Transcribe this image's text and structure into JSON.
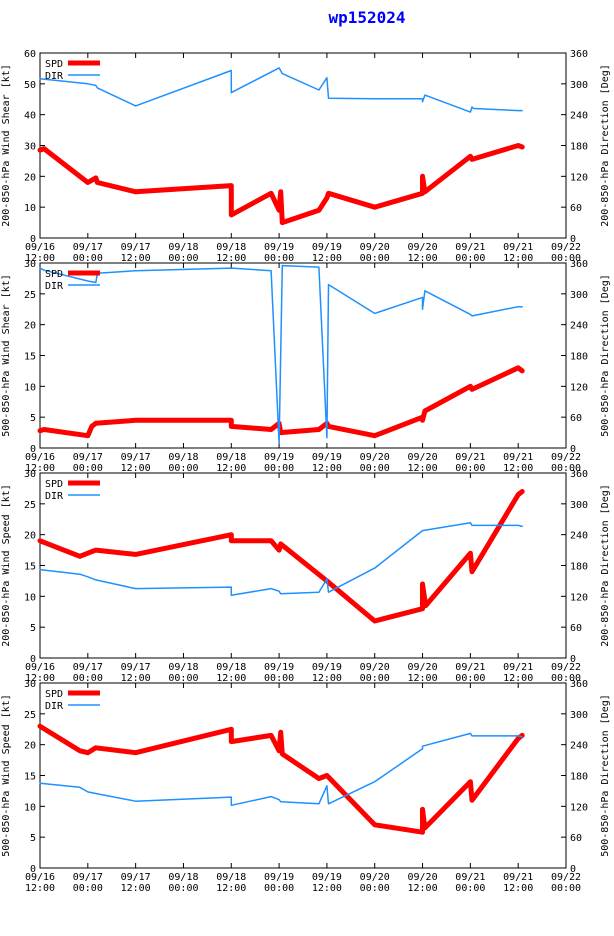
{
  "title": "wp152024",
  "colors": {
    "spd": "#ff0000",
    "dir": "#1e90ff",
    "frame": "#000000"
  },
  "x_ticks": [
    "09/16 12:00",
    "09/17 00:00",
    "09/17 12:00",
    "09/18 00:00",
    "09/18 12:00",
    "09/19 00:00",
    "09/19 12:00",
    "09/20 00:00",
    "09/20 12:00",
    "09/21 00:00",
    "09/21 12:00",
    "09/22 00:00"
  ],
  "chart_data": [
    {
      "type": "line",
      "xlim": [
        0,
        66
      ],
      "ylim": [
        0,
        60
      ],
      "y2lim": [
        0,
        360
      ],
      "yticks": [
        0,
        10,
        20,
        30,
        40,
        50,
        60
      ],
      "y2ticks": [
        0,
        60,
        120,
        180,
        240,
        300,
        360
      ],
      "ylabel": "200-850-hPa Wind Shear [kt]",
      "y2label": "200-850-hPa Direction [Deg]",
      "legend": [
        "SPD",
        "DIR"
      ],
      "series": [
        {
          "name": "SPD",
          "axis": "left",
          "points": [
            [
              0,
              28.5
            ],
            [
              0.5,
              29
            ],
            [
              6,
              18
            ],
            [
              7,
              19.5
            ],
            [
              7.2,
              18
            ],
            [
              12,
              15
            ],
            [
              24,
              17
            ],
            [
              24,
              7.5
            ],
            [
              29,
              14.5
            ],
            [
              30,
              9
            ],
            [
              30.2,
              15
            ],
            [
              30.4,
              5
            ],
            [
              35,
              9
            ],
            [
              36,
              13
            ],
            [
              36.2,
              14.5
            ],
            [
              42,
              10
            ],
            [
              48,
              14.5
            ],
            [
              48,
              20
            ],
            [
              48.3,
              15
            ],
            [
              54,
              26.5
            ],
            [
              54.2,
              25.5
            ],
            [
              60,
              30
            ],
            [
              60.5,
              29.5
            ]
          ]
        },
        {
          "name": "DIR",
          "axis": "right",
          "points": [
            [
              0,
              310
            ],
            [
              6,
              300
            ],
            [
              7,
              297
            ],
            [
              7.2,
              292
            ],
            [
              12,
              257
            ],
            [
              24,
              326
            ],
            [
              24,
              283
            ],
            [
              30,
              331
            ],
            [
              30.4,
              320
            ],
            [
              35,
              288
            ],
            [
              36,
              312
            ],
            [
              36.2,
              272
            ],
            [
              42,
              271
            ],
            [
              48,
              271
            ],
            [
              48,
              265
            ],
            [
              48.3,
              278
            ],
            [
              54,
              245
            ],
            [
              54.2,
              255
            ],
            [
              54.4,
              252
            ],
            [
              60,
              248
            ],
            [
              60.5,
              248
            ]
          ]
        }
      ]
    },
    {
      "type": "line",
      "xlim": [
        0,
        66
      ],
      "ylim": [
        0,
        30
      ],
      "y2lim": [
        0,
        360
      ],
      "yticks": [
        0,
        5,
        10,
        15,
        20,
        25,
        30
      ],
      "y2ticks": [
        0,
        60,
        120,
        180,
        240,
        300,
        360
      ],
      "ylabel": "500-850-hPa Wind Shear [kt]",
      "y2label": "500-850-hPa Direction [Deg]",
      "legend": [
        "SPD",
        "DIR"
      ],
      "series": [
        {
          "name": "SPD",
          "axis": "left",
          "points": [
            [
              0,
              2.8
            ],
            [
              0.5,
              3
            ],
            [
              6,
              2
            ],
            [
              6.5,
              3.5
            ],
            [
              7,
              4
            ],
            [
              12,
              4.5
            ],
            [
              24,
              4.5
            ],
            [
              24,
              3.5
            ],
            [
              29,
              3
            ],
            [
              30,
              4
            ],
            [
              30.2,
              2.5
            ],
            [
              35,
              3
            ],
            [
              36,
              4
            ],
            [
              36.2,
              3.5
            ],
            [
              42,
              2
            ],
            [
              48,
              5
            ],
            [
              48,
              4.5
            ],
            [
              48.3,
              6
            ],
            [
              54,
              10
            ],
            [
              54.2,
              9.5
            ],
            [
              60,
              13
            ],
            [
              60.5,
              12.5
            ]
          ]
        },
        {
          "name": "DIR",
          "axis": "right",
          "points": [
            [
              0,
              350
            ],
            [
              0.5,
              346
            ],
            [
              6,
              325
            ],
            [
              7,
              322
            ],
            [
              7.2,
              340
            ],
            [
              12,
              345
            ],
            [
              24,
              350
            ],
            [
              29,
              345
            ],
            [
              30,
              10
            ],
            [
              30.4,
              355
            ],
            [
              35,
              352
            ],
            [
              36,
              20
            ],
            [
              36.2,
              318
            ],
            [
              42,
              262
            ],
            [
              48,
              293
            ],
            [
              48,
              270
            ],
            [
              48.3,
              306
            ],
            [
              54,
              260
            ],
            [
              54.2,
              257
            ],
            [
              60,
              275
            ],
            [
              60.5,
              275
            ]
          ]
        }
      ]
    },
    {
      "type": "line",
      "xlim": [
        0,
        66
      ],
      "ylim": [
        0,
        30
      ],
      "y2lim": [
        0,
        360
      ],
      "yticks": [
        0,
        5,
        10,
        15,
        20,
        25,
        30
      ],
      "y2ticks": [
        0,
        60,
        120,
        180,
        240,
        300,
        360
      ],
      "ylabel": "200-850-hPa Wind Speed [kt]",
      "y2label": "200-850-hPa Direction [Deg]",
      "legend": [
        "SPD",
        "DIR"
      ],
      "series": [
        {
          "name": "SPD",
          "axis": "left",
          "points": [
            [
              0,
              19
            ],
            [
              5,
              16.5
            ],
            [
              6,
              17
            ],
            [
              7,
              17.5
            ],
            [
              12,
              16.8
            ],
            [
              24,
              20
            ],
            [
              24,
              19
            ],
            [
              29,
              19
            ],
            [
              30,
              17.5
            ],
            [
              30.2,
              18.5
            ],
            [
              36,
              12.5
            ],
            [
              42,
              6
            ],
            [
              48,
              8
            ],
            [
              48,
              12
            ],
            [
              48.4,
              8.5
            ],
            [
              54,
              17
            ],
            [
              54.2,
              14
            ],
            [
              60,
              26.5
            ],
            [
              60.5,
              27
            ]
          ]
        },
        {
          "name": "DIR",
          "axis": "right",
          "points": [
            [
              0,
              172
            ],
            [
              5,
              163
            ],
            [
              6,
              158
            ],
            [
              7,
              152
            ],
            [
              12,
              135
            ],
            [
              24,
              138
            ],
            [
              24,
              122
            ],
            [
              29,
              135
            ],
            [
              30,
              130
            ],
            [
              30.2,
              125
            ],
            [
              35,
              128
            ],
            [
              36,
              154
            ],
            [
              36.2,
              128
            ],
            [
              42,
              175
            ],
            [
              48,
              248
            ],
            [
              54,
              263
            ],
            [
              54.2,
              258
            ],
            [
              60,
              258
            ],
            [
              60.5,
              256
            ]
          ]
        }
      ]
    },
    {
      "type": "line",
      "xlim": [
        0,
        66
      ],
      "ylim": [
        0,
        30
      ],
      "y2lim": [
        0,
        360
      ],
      "yticks": [
        0,
        5,
        10,
        15,
        20,
        25,
        30
      ],
      "y2ticks": [
        0,
        60,
        120,
        180,
        240,
        300,
        360
      ],
      "ylabel": "500-850-hPa Wind Speed [kt]",
      "y2label": "500-850-hPa Direction [Deg]",
      "legend": [
        "SPD",
        "DIR"
      ],
      "series": [
        {
          "name": "SPD",
          "axis": "left",
          "points": [
            [
              0,
              23
            ],
            [
              5,
              19
            ],
            [
              6,
              18.7
            ],
            [
              7,
              19.5
            ],
            [
              12,
              18.7
            ],
            [
              24,
              22.5
            ],
            [
              24,
              20.5
            ],
            [
              29,
              21.5
            ],
            [
              30,
              19
            ],
            [
              30.2,
              22
            ],
            [
              30.4,
              18.5
            ],
            [
              35,
              14.5
            ],
            [
              36,
              15
            ],
            [
              42,
              7
            ],
            [
              48,
              5.8
            ],
            [
              48,
              9.5
            ],
            [
              48.3,
              6.5
            ],
            [
              54,
              14
            ],
            [
              54.2,
              11
            ],
            [
              60,
              21
            ],
            [
              60.5,
              21.5
            ]
          ]
        },
        {
          "name": "DIR",
          "axis": "right",
          "points": [
            [
              0,
              165
            ],
            [
              5,
              157
            ],
            [
              6,
              148
            ],
            [
              7,
              145
            ],
            [
              12,
              130
            ],
            [
              24,
              138
            ],
            [
              24,
              122
            ],
            [
              29,
              139
            ],
            [
              30,
              133
            ],
            [
              30.2,
              129
            ],
            [
              35,
              125
            ],
            [
              36,
              160
            ],
            [
              36.2,
              125
            ],
            [
              42,
              168
            ],
            [
              48,
              232
            ],
            [
              48,
              237
            ],
            [
              54,
              262
            ],
            [
              54.2,
              257
            ],
            [
              60,
              257
            ],
            [
              60.5,
              255
            ]
          ]
        }
      ]
    }
  ]
}
